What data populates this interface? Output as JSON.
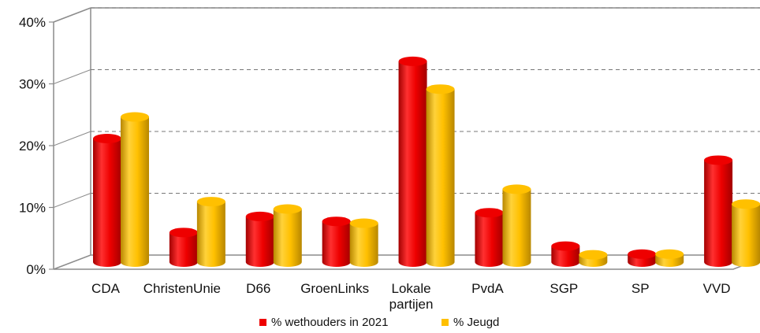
{
  "chart_data": {
    "type": "bar",
    "style": "3d-cylinder",
    "categories": [
      "CDA",
      "ChristenUnie",
      "D66",
      "GroenLinks",
      "Lokale partijen",
      "PvdA",
      "SGP",
      "SP",
      "VVD"
    ],
    "category_lines": [
      [
        "CDA"
      ],
      [
        "ChristenUnie"
      ],
      [
        "D66"
      ],
      [
        "GroenLinks"
      ],
      [
        "Lokale",
        "partijen"
      ],
      [
        "PvdA"
      ],
      [
        "SGP"
      ],
      [
        "SP"
      ],
      [
        "VVD"
      ]
    ],
    "series": [
      {
        "name": "% wethouders in 2021",
        "color": "#ee0000",
        "values": [
          20.0,
          4.8,
          7.4,
          6.6,
          32.5,
          8.0,
          2.6,
          1.3,
          16.5
        ]
      },
      {
        "name": "% Jeugd",
        "color": "#ffc000",
        "values": [
          23.5,
          9.8,
          8.6,
          6.3,
          28.0,
          11.8,
          1.2,
          1.3,
          9.4
        ]
      }
    ],
    "ylim": [
      0,
      40
    ],
    "yticks": [
      0,
      10,
      20,
      30,
      40
    ],
    "ytick_labels": [
      "0%",
      "10%",
      "20%",
      "30%",
      "40%"
    ],
    "grid": true,
    "legend_position": "bottom",
    "title": "",
    "xlabel": "",
    "ylabel": ""
  }
}
